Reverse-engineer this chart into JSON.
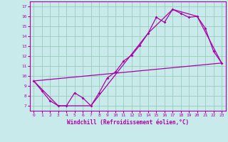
{
  "xlabel": "Windchill (Refroidissement éolien,°C)",
  "xlim": [
    -0.5,
    23.5
  ],
  "ylim": [
    6.5,
    17.5
  ],
  "yticks": [
    7,
    8,
    9,
    10,
    11,
    12,
    13,
    14,
    15,
    16,
    17
  ],
  "xticks": [
    0,
    1,
    2,
    3,
    4,
    5,
    6,
    7,
    8,
    9,
    10,
    11,
    12,
    13,
    14,
    15,
    16,
    17,
    18,
    19,
    20,
    21,
    22,
    23
  ],
  "background_color": "#c8eaea",
  "line_color": "#aa00aa",
  "grid_color": "#99ccbb",
  "line1_x": [
    0,
    1,
    2,
    3,
    4,
    5,
    6,
    7,
    8,
    9,
    10,
    11,
    12,
    13,
    14,
    15,
    16,
    17,
    18,
    19,
    20,
    21,
    22,
    23
  ],
  "line1_y": [
    9.5,
    8.5,
    7.5,
    7.0,
    7.0,
    8.3,
    7.8,
    7.0,
    8.3,
    9.8,
    10.4,
    11.5,
    12.1,
    13.1,
    14.3,
    15.9,
    15.4,
    16.7,
    16.3,
    15.9,
    16.0,
    14.8,
    12.5,
    11.3
  ],
  "line2_x": [
    0,
    23
  ],
  "line2_y": [
    9.5,
    11.3
  ],
  "line3_x": [
    0,
    3,
    7,
    14,
    17,
    20,
    23
  ],
  "line3_y": [
    9.5,
    7.0,
    7.0,
    14.3,
    16.7,
    16.0,
    11.3
  ]
}
